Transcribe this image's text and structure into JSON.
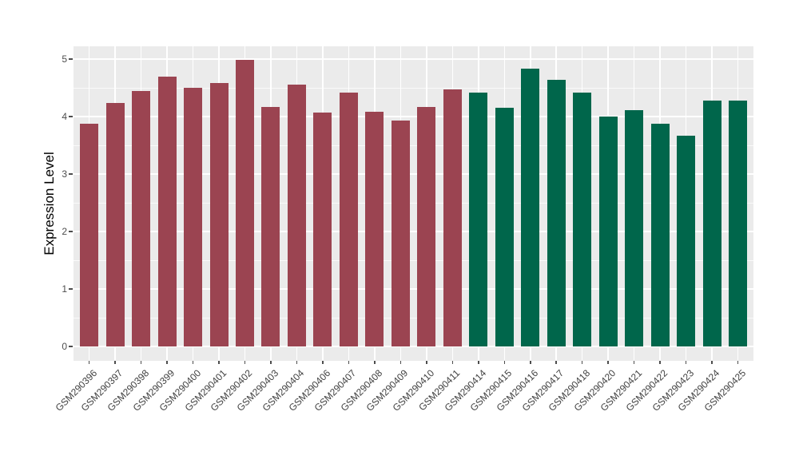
{
  "chart_data": {
    "type": "bar",
    "title": "",
    "xlabel": "",
    "ylabel": "Expression Level",
    "categories": [
      "GSM290396",
      "GSM290397",
      "GSM290398",
      "GSM290399",
      "GSM290400",
      "GSM290401",
      "GSM290402",
      "GSM290403",
      "GSM290404",
      "GSM290406",
      "GSM290407",
      "GSM290408",
      "GSM290409",
      "GSM290410",
      "GSM290411",
      "GSM290414",
      "GSM290415",
      "GSM290416",
      "GSM290417",
      "GSM290418",
      "GSM290420",
      "GSM290421",
      "GSM290422",
      "GSM290423",
      "GSM290424",
      "GSM290425"
    ],
    "values": [
      3.87,
      4.24,
      4.44,
      4.69,
      4.5,
      4.59,
      4.98,
      4.16,
      4.56,
      4.07,
      4.42,
      4.08,
      3.93,
      4.16,
      4.47,
      4.41,
      4.15,
      4.83,
      4.64,
      4.41,
      4.0,
      4.11,
      3.88,
      3.66,
      4.28,
      4.28
    ],
    "color_groups": [
      {
        "color": "#9B4451",
        "count": 15
      },
      {
        "color": "#00664B",
        "count": 11
      }
    ],
    "yticks": [
      "0",
      "1",
      "2",
      "3",
      "4",
      "5"
    ],
    "ylim": [
      0,
      5
    ],
    "grid": true,
    "legend": false,
    "panel_background": "#EBEBEB",
    "grid_color": "#FFFFFF",
    "tick_label_color": "#4D4D4D"
  }
}
